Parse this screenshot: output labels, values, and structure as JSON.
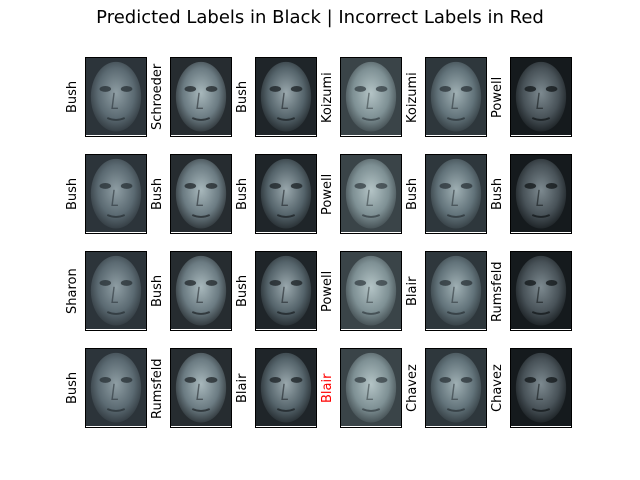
{
  "chart_data": {
    "type": "image-grid",
    "title": "Predicted Labels in Black | Incorrect Labels in Red",
    "rows": 4,
    "cols": 6,
    "panels": [
      {
        "label": "Bush",
        "correct": true
      },
      {
        "label": "Schroeder",
        "correct": true
      },
      {
        "label": "Bush",
        "correct": true
      },
      {
        "label": "Koizumi",
        "correct": true
      },
      {
        "label": "Koizumi",
        "correct": true
      },
      {
        "label": "Powell",
        "correct": true
      },
      {
        "label": "Bush",
        "correct": true
      },
      {
        "label": "Bush",
        "correct": true
      },
      {
        "label": "Bush",
        "correct": true
      },
      {
        "label": "Powell",
        "correct": true
      },
      {
        "label": "Bush",
        "correct": true
      },
      {
        "label": "Bush",
        "correct": true
      },
      {
        "label": "Sharon",
        "correct": true
      },
      {
        "label": "Bush",
        "correct": true
      },
      {
        "label": "Bush",
        "correct": true
      },
      {
        "label": "Powell",
        "correct": true
      },
      {
        "label": "Blair",
        "correct": true
      },
      {
        "label": "Rumsfeld",
        "correct": true
      },
      {
        "label": "Bush",
        "correct": true
      },
      {
        "label": "Rumsfeld",
        "correct": true
      },
      {
        "label": "Blair",
        "correct": true
      },
      {
        "label": "Blair",
        "correct": false
      },
      {
        "label": "Chavez",
        "correct": true
      },
      {
        "label": "Chavez",
        "correct": true
      }
    ],
    "colors": {
      "correct": "#000000",
      "incorrect": "#ff0000"
    },
    "colormap": "bone"
  }
}
